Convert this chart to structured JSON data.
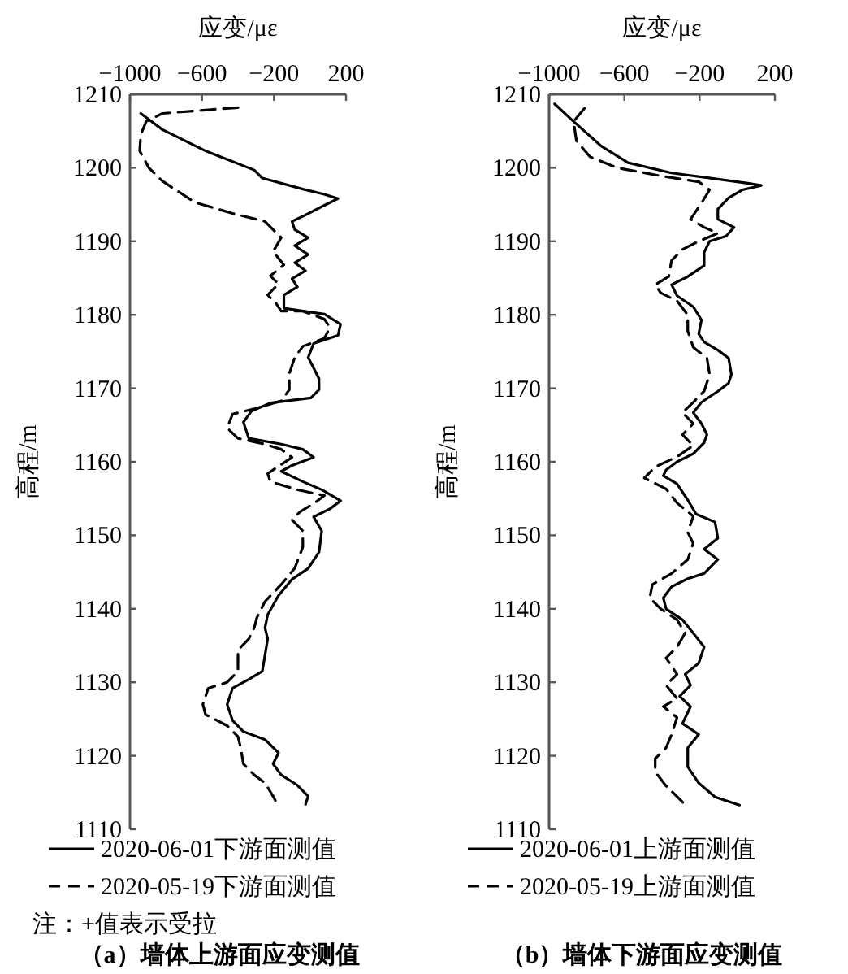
{
  "chart_data": [
    {
      "type": "line",
      "subtitle": "（a）墙体上游面应变测值",
      "xlabel": "应变/με",
      "ylabel": "高程/m",
      "xlim": [
        -1000,
        200
      ],
      "xticks": [
        -1000,
        -600,
        -200,
        200
      ],
      "ylim": [
        1110,
        1210
      ],
      "yticks": [
        1110,
        1120,
        1130,
        1140,
        1150,
        1160,
        1170,
        1180,
        1190,
        1200,
        1210
      ],
      "legend": "bottom",
      "grid": false,
      "annotations": [
        "注：+值表示受拉"
      ],
      "series": [
        {
          "name": "2020-06-01下游面测值",
          "color": "#000000",
          "line_style": "solid",
          "x": [
            -940,
            -820,
            -580,
            -310,
            -265,
            -40,
            80,
            155,
            80,
            -40,
            -100,
            -85,
            -10,
            -85,
            -10,
            -85,
            -25,
            -100,
            -70,
            -145,
            -145,
            80,
            170,
            155,
            20,
            -10,
            50,
            50,
            5,
            -220,
            -325,
            -370,
            -340,
            -160,
            -40,
            20,
            -100,
            -160,
            -40,
            65,
            170,
            110,
            20,
            65,
            50,
            -10,
            -100,
            -175,
            -235,
            -250,
            -235,
            -250,
            -265,
            -340,
            -430,
            -460,
            -430,
            -370,
            -250,
            -175,
            -205,
            -160,
            -70,
            -10,
            -25
          ],
          "values": [
            1207.4,
            1205.2,
            1202.3,
            1199.7,
            1198.6,
            1197.1,
            1196.4,
            1195.8,
            1194.9,
            1193.4,
            1192.7,
            1191.6,
            1190.5,
            1189.4,
            1188.2,
            1187.1,
            1186.0,
            1184.9,
            1183.8,
            1182.7,
            1180.9,
            1180.1,
            1178.7,
            1177.2,
            1176.1,
            1174.2,
            1171.3,
            1169.8,
            1168.7,
            1168.0,
            1166.9,
            1165.4,
            1163.2,
            1162.4,
            1161.7,
            1160.6,
            1159.5,
            1158.7,
            1157.3,
            1156.2,
            1154.7,
            1153.6,
            1152.5,
            1150.6,
            1147.7,
            1145.5,
            1144.0,
            1141.8,
            1139.2,
            1137.4,
            1135.9,
            1133.7,
            1131.5,
            1130.4,
            1129.2,
            1127.0,
            1124.8,
            1123.3,
            1122.2,
            1120.4,
            1118.9,
            1117.4,
            1116.0,
            1114.5,
            1113.4
          ]
        },
        {
          "name": "2020-05-19下游面测值",
          "color": "#000000",
          "line_style": "dashed",
          "x": [
            -400,
            -820,
            -910,
            -940,
            -946,
            -895,
            -820,
            -640,
            -430,
            -250,
            -160,
            -205,
            -145,
            -220,
            -175,
            -235,
            -190,
            -160,
            -40,
            80,
            110,
            80,
            -40,
            -85,
            -115,
            -115,
            -160,
            -310,
            -430,
            -460,
            -400,
            -250,
            -160,
            -100,
            -235,
            -220,
            -70,
            80,
            20,
            -55,
            -100,
            -40,
            -40,
            -85,
            -160,
            -250,
            -295,
            -310,
            -340,
            -400,
            -400,
            -460,
            -565,
            -595,
            -580,
            -460,
            -400,
            -385,
            -370,
            -310,
            -250,
            -205,
            -190
          ],
          "values": [
            1208.2,
            1207.4,
            1206.3,
            1204.5,
            1202.3,
            1200.0,
            1198.2,
            1195.3,
            1193.8,
            1192.7,
            1190.5,
            1188.6,
            1186.8,
            1185.3,
            1184.2,
            1182.7,
            1181.6,
            1180.5,
            1180.5,
            1179.4,
            1178.3,
            1176.8,
            1175.7,
            1174.2,
            1172.0,
            1169.8,
            1168.3,
            1167.2,
            1166.5,
            1164.6,
            1163.2,
            1162.4,
            1161.7,
            1160.6,
            1158.4,
            1157.3,
            1156.2,
            1155.4,
            1154.3,
            1153.2,
            1152.1,
            1150.6,
            1148.4,
            1145.5,
            1143.3,
            1141.0,
            1138.8,
            1137.4,
            1135.9,
            1134.4,
            1131.5,
            1130.0,
            1129.2,
            1127.0,
            1125.6,
            1124.1,
            1122.6,
            1121.1,
            1118.9,
            1117.4,
            1116.3,
            1114.5,
            1113.8
          ]
        }
      ]
    },
    {
      "type": "line",
      "subtitle": "（b）墙体下游面应变测值",
      "xlabel": "应变/με",
      "ylabel": "高程/m",
      "xlim": [
        -1000,
        200
      ],
      "xticks": [
        -1000,
        -600,
        -200,
        200
      ],
      "ylim": [
        1110,
        1210
      ],
      "yticks": [
        1110,
        1120,
        1130,
        1140,
        1150,
        1160,
        1170,
        1180,
        1190,
        1200,
        1210
      ],
      "legend": "bottom",
      "grid": false,
      "series": [
        {
          "name": "2020-06-01上游面测值",
          "color": "#000000",
          "line_style": "solid",
          "x": [
            -971,
            -870,
            -725,
            -581,
            -349,
            -118,
            56,
            128,
            27,
            -46,
            -103,
            -103,
            -17,
            -60,
            -147,
            -176,
            -176,
            -263,
            -349,
            -320,
            -234,
            -190,
            -205,
            -176,
            -103,
            -46,
            -31,
            -46,
            -103,
            -190,
            -234,
            -190,
            -161,
            -176,
            -234,
            -320,
            -378,
            -393,
            -320,
            -263,
            -219,
            -118,
            -103,
            -176,
            -103,
            -176,
            -263,
            -349,
            -393,
            -378,
            -291,
            -234,
            -176,
            -205,
            -277,
            -248,
            -306,
            -248,
            -291,
            -205,
            -263,
            -263,
            -205,
            -118,
            12
          ],
          "values": [
            1208.7,
            1206.3,
            1203.0,
            1200.7,
            1199.3,
            1198.5,
            1197.9,
            1197.6,
            1197.0,
            1195.9,
            1194.4,
            1193.0,
            1191.9,
            1190.7,
            1190.0,
            1188.5,
            1186.7,
            1185.2,
            1184.1,
            1182.6,
            1181.1,
            1179.3,
            1177.4,
            1176.3,
            1175.2,
            1174.1,
            1171.9,
            1170.7,
            1169.6,
            1168.1,
            1166.7,
            1165.2,
            1163.7,
            1162.6,
            1161.1,
            1160.0,
            1158.9,
            1158.1,
            1157.0,
            1154.8,
            1152.9,
            1151.8,
            1149.6,
            1148.1,
            1146.7,
            1144.8,
            1144.1,
            1143.0,
            1141.5,
            1140.0,
            1138.5,
            1136.7,
            1134.8,
            1132.6,
            1131.1,
            1129.6,
            1128.1,
            1126.7,
            1124.4,
            1122.9,
            1121.1,
            1118.5,
            1116.3,
            1114.4,
            1113.3
          ]
        },
        {
          "name": "2020-05-19上游面测值",
          "color": "#000000",
          "line_style": "dashed",
          "x": [
            -812,
            -870,
            -855,
            -783,
            -639,
            -407,
            -205,
            -147,
            -190,
            -248,
            -176,
            -103,
            -205,
            -291,
            -349,
            -364,
            -436,
            -407,
            -320,
            -263,
            -263,
            -234,
            -161,
            -147,
            -176,
            -234,
            -291,
            -234,
            -291,
            -234,
            -320,
            -436,
            -494,
            -378,
            -320,
            -234,
            -263,
            -234,
            -263,
            -349,
            -451,
            -465,
            -407,
            -320,
            -277,
            -320,
            -378,
            -320,
            -378,
            -320,
            -393,
            -320,
            -349,
            -378,
            -436,
            -436,
            -378,
            -306,
            -263
          ],
          "values": [
            1208.1,
            1206.3,
            1203.7,
            1201.5,
            1200.0,
            1198.9,
            1198.1,
            1197.0,
            1195.2,
            1193.0,
            1191.9,
            1191.1,
            1190.0,
            1188.9,
            1187.4,
            1185.2,
            1184.1,
            1183.0,
            1181.9,
            1180.0,
            1177.8,
            1175.6,
            1174.1,
            1171.9,
            1169.6,
            1168.1,
            1166.7,
            1165.2,
            1163.7,
            1162.2,
            1160.7,
            1159.3,
            1157.8,
            1156.3,
            1154.4,
            1152.6,
            1150.4,
            1148.9,
            1146.7,
            1144.8,
            1143.3,
            1141.5,
            1140.0,
            1138.5,
            1136.7,
            1134.8,
            1133.3,
            1131.1,
            1129.6,
            1127.8,
            1126.7,
            1125.2,
            1122.9,
            1121.1,
            1119.6,
            1117.8,
            1115.9,
            1114.1,
            1113.0
          ]
        }
      ]
    }
  ]
}
